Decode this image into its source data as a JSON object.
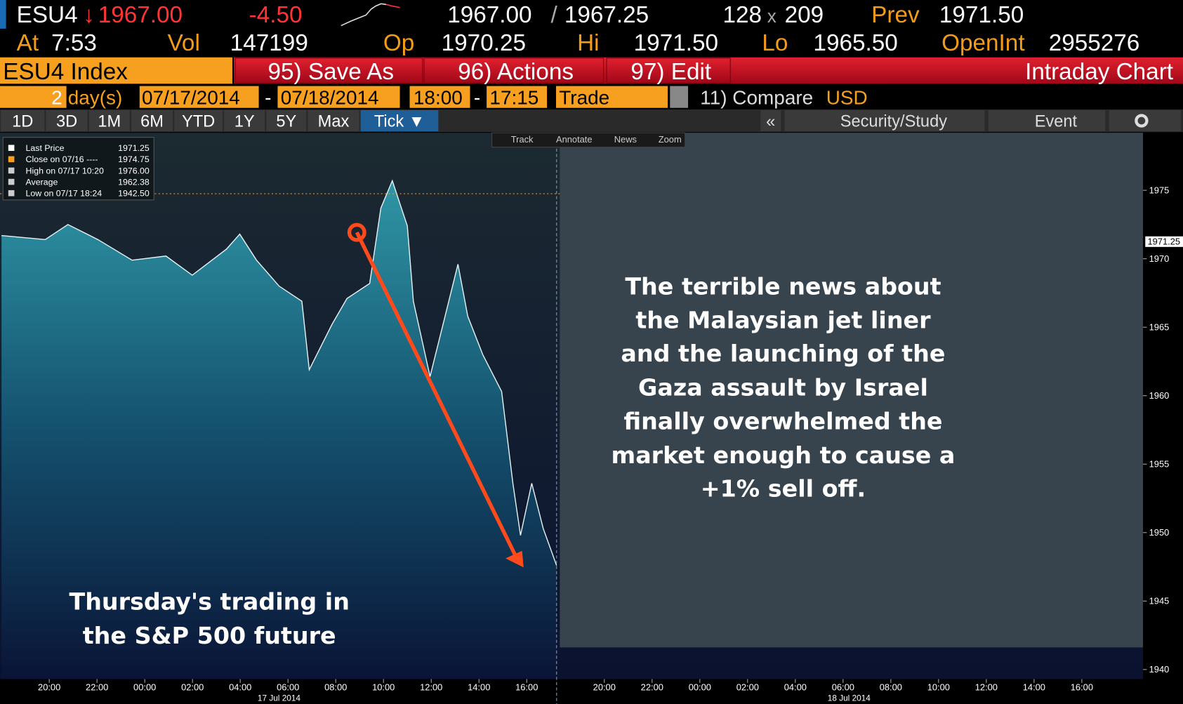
{
  "header": {
    "ticker": "ESU4",
    "last": "1967.00",
    "change": "-4.50",
    "bid": "1967.00",
    "sep": "/",
    "ask": "1967.25",
    "bid_size": "128",
    "x": "x",
    "ask_size": "209",
    "prev_label": "Prev",
    "prev": "1971.50",
    "at_label": "At",
    "time": "7:53",
    "vol_label": "Vol",
    "vol": "147199",
    "op_label": "Op",
    "op": "1970.25",
    "hi_label": "Hi",
    "hi": "1971.50",
    "lo_label": "Lo",
    "lo": "1965.50",
    "oi_label": "OpenInt",
    "oi": "2955276"
  },
  "toolbar": {
    "security": "ESU4 Index",
    "buttons": [
      "95) Save As",
      "96) Actions",
      "97) Edit"
    ],
    "title": "Intraday Chart"
  },
  "range": {
    "n": "2",
    "unit": "day(s)",
    "start": "07/17/2014",
    "dash": "-",
    "end": "07/18/2014",
    "t_start": "18:00",
    "dash2": "-",
    "t_end": "17:15",
    "mode": "Trade",
    "compare": "11) Compare",
    "currency": "USD"
  },
  "tabs": [
    "1D",
    "3D",
    "1M",
    "6M",
    "YTD",
    "1Y",
    "5Y",
    "Max",
    "Tick ▼"
  ],
  "right_tabs": [
    "«",
    "Security/Study",
    "Event"
  ],
  "chart_tools": [
    "Track",
    "Annotate",
    "News",
    "Zoom"
  ],
  "chart_data": {
    "type": "area",
    "color": "#e8f4f8",
    "x": [
      0,
      1.83,
      2.78,
      4.04,
      5.47,
      6.89,
      7.99,
      9.42,
      9.98,
      10.68,
      11.63,
      12.58,
      12.89,
      13.84,
      14.47,
      15.42,
      15.89,
      16.37,
      17.0,
      17.25,
      17.95,
      18.58,
      19.12,
      19.53,
      20.16,
      20.95,
      21.42,
      21.74,
      22.21,
      22.69,
      23.25
    ],
    "values": [
      1971.7,
      1971.4,
      1972.5,
      1971.4,
      1969.9,
      1970.2,
      1968.8,
      1970.7,
      1971.8,
      1969.9,
      1968.0,
      1966.9,
      1961.9,
      1965.2,
      1967.1,
      1968.2,
      1973.7,
      1975.7,
      1972.4,
      1966.9,
      1961.4,
      1965.8,
      1969.6,
      1965.8,
      1963.0,
      1960.3,
      1953.6,
      1949.8,
      1953.6,
      1950.3,
      1947.6
    ],
    "xlim": [
      0,
      47.75
    ],
    "ylim": [
      1939.3,
      1979.2
    ],
    "xticks": [
      {
        "value": 2,
        "label": "20:00"
      },
      {
        "value": 4,
        "label": "22:00"
      },
      {
        "value": 6,
        "label": "00:00"
      },
      {
        "value": 8,
        "label": "02:00"
      },
      {
        "value": 10,
        "label": "04:00"
      },
      {
        "value": 12,
        "label": "06:00"
      },
      {
        "value": 14,
        "label": "08:00"
      },
      {
        "value": 16,
        "label": "10:00"
      },
      {
        "value": 18,
        "label": "12:00"
      },
      {
        "value": 20,
        "label": "14:00"
      },
      {
        "value": 22,
        "label": "16:00"
      },
      {
        "value": 25.25,
        "label": "20:00"
      },
      {
        "value": 27.25,
        "label": "22:00"
      },
      {
        "value": 29.25,
        "label": "00:00"
      },
      {
        "value": 31.25,
        "label": "02:00"
      },
      {
        "value": 33.25,
        "label": "04:00"
      },
      {
        "value": 35.25,
        "label": "06:00"
      },
      {
        "value": 37.25,
        "label": "08:00"
      },
      {
        "value": 39.25,
        "label": "10:00"
      },
      {
        "value": 41.25,
        "label": "12:00"
      },
      {
        "value": 43.25,
        "label": "14:00"
      },
      {
        "value": 45.25,
        "label": "16:00"
      }
    ],
    "yticks": [
      1940,
      1945,
      1950,
      1955,
      1960,
      1965,
      1970,
      1975
    ],
    "session_break": 23.25,
    "date_labels": [
      "17 Jul 2014",
      "18 Jul 2014"
    ],
    "stats": [
      {
        "label": "Last Price",
        "value": 1971.25
      },
      {
        "label": "Close on 07/16 ----",
        "value": 1974.75
      },
      {
        "label": "High on 07/17 10:20",
        "value": {
          "value": 1976,
          "label": "1976.00"
        }
      },
      {
        "label": "Average",
        "value": 1962.38
      },
      {
        "label": "Low on 07/17 18:24",
        "value": {
          "value": 1942.5,
          "label": "1942.50"
        }
      }
    ],
    "annotations": [
      "The terrible news about the Malaysian jet liner and the launching of the Gaza assault by Israel finally overwhelmed the market enough to cause a +1% sell off.",
      "Thursday's trading in the S&P 500 future"
    ]
  }
}
